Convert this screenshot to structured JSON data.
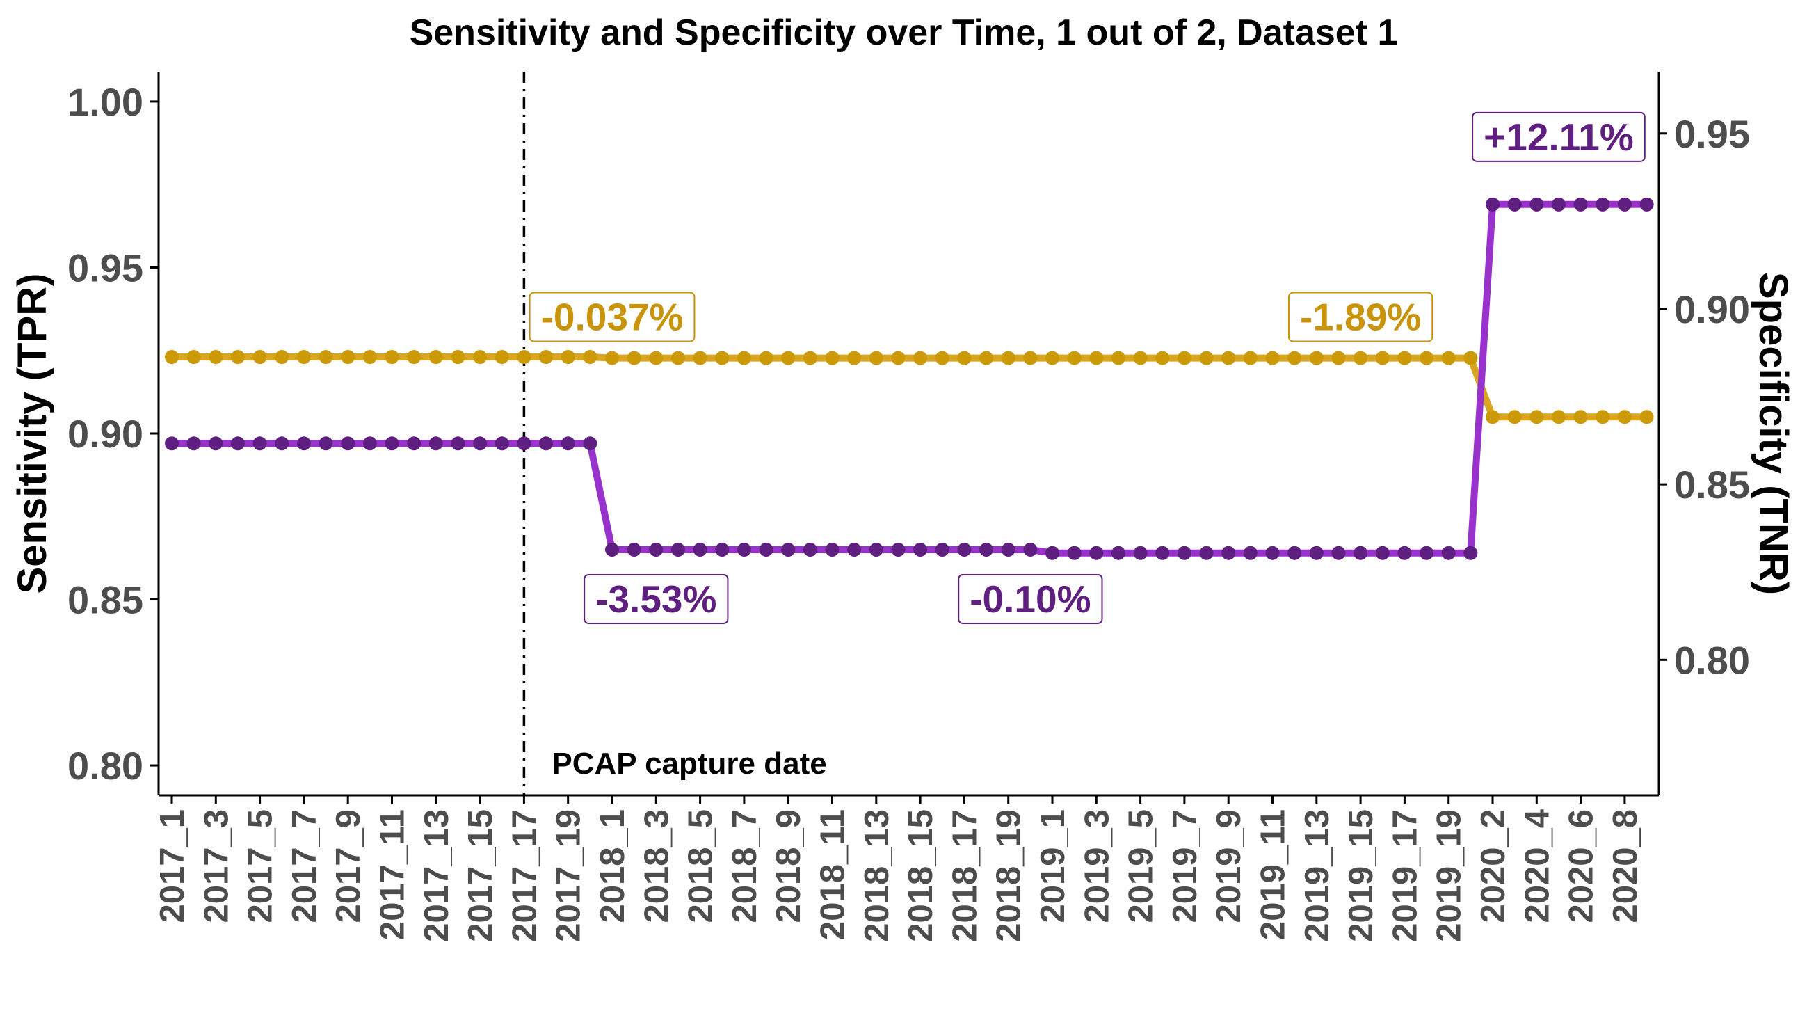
{
  "colors": {
    "sensitivity_line": "#9932CC",
    "sensitivity_point": "#5E1F80",
    "specificity_line": "#DAA520",
    "specificity_point": "#CC9A06",
    "sensitivity_label": "#5E1F80",
    "specificity_label": "#C9940A",
    "axis": "#000000",
    "tick_text": "#4d4d4d"
  },
  "chart_data": {
    "type": "line",
    "title": "Sensitivity and Specificity over Time, 1 out of 2, Dataset 1",
    "ylabel_left": "Sensitivity (TPR)",
    "ylabel_right": "Specificity (TNR)",
    "xlabel": "",
    "y_left_lim": [
      0.791,
      1.009
    ],
    "y_left_ticks": [
      "0.80",
      "0.85",
      "0.90",
      "0.95",
      "1.00"
    ],
    "y_right_lim": [
      0.7614,
      0.9676
    ],
    "y_right_ticks": [
      "0.80",
      "0.85",
      "0.90",
      "0.95"
    ],
    "x_tick_labels": [
      "2017_1",
      "2017_3",
      "2017_5",
      "2017_7",
      "2017_9",
      "2017_11",
      "2017_13",
      "2017_15",
      "2017_17",
      "2017_19",
      "2018_1",
      "2018_3",
      "2018_5",
      "2018_7",
      "2018_9",
      "2018_11",
      "2018_13",
      "2018_15",
      "2018_17",
      "2018_19",
      "2019_1",
      "2019_3",
      "2019_5",
      "2019_7",
      "2019_9",
      "2019_11",
      "2019_13",
      "2019_15",
      "2019_17",
      "2019_19",
      "2020_2",
      "2020_4",
      "2020_6",
      "2020_8"
    ],
    "grid": false,
    "vertical_line": {
      "x_index": 16,
      "label": "PCAP capture date"
    },
    "series": [
      {
        "name": "Sensitivity (TPR)",
        "axis": "left",
        "values": [
          0.897,
          0.897,
          0.897,
          0.897,
          0.897,
          0.897,
          0.897,
          0.897,
          0.897,
          0.897,
          0.897,
          0.897,
          0.897,
          0.897,
          0.897,
          0.897,
          0.897,
          0.897,
          0.897,
          0.897,
          0.865,
          0.865,
          0.865,
          0.865,
          0.865,
          0.865,
          0.865,
          0.865,
          0.865,
          0.865,
          0.865,
          0.865,
          0.865,
          0.865,
          0.865,
          0.865,
          0.865,
          0.865,
          0.865,
          0.865,
          0.864,
          0.864,
          0.864,
          0.864,
          0.864,
          0.864,
          0.864,
          0.864,
          0.864,
          0.864,
          0.864,
          0.864,
          0.864,
          0.864,
          0.864,
          0.864,
          0.864,
          0.864,
          0.864,
          0.864,
          0.969,
          0.969,
          0.969,
          0.969,
          0.969,
          0.969,
          0.969,
          0.969
        ]
      },
      {
        "name": "Specificity (TNR)",
        "axis": "right",
        "values": [
          0.8863,
          0.8863,
          0.8863,
          0.8863,
          0.8863,
          0.8863,
          0.8863,
          0.8863,
          0.8863,
          0.8863,
          0.8863,
          0.8863,
          0.8863,
          0.8863,
          0.8863,
          0.8863,
          0.8863,
          0.8863,
          0.8863,
          0.8863,
          0.886,
          0.886,
          0.886,
          0.886,
          0.886,
          0.886,
          0.886,
          0.886,
          0.886,
          0.886,
          0.886,
          0.886,
          0.886,
          0.886,
          0.886,
          0.886,
          0.886,
          0.886,
          0.886,
          0.886,
          0.886,
          0.886,
          0.886,
          0.886,
          0.886,
          0.886,
          0.886,
          0.886,
          0.886,
          0.886,
          0.886,
          0.886,
          0.886,
          0.886,
          0.886,
          0.886,
          0.886,
          0.886,
          0.886,
          0.886,
          0.8692,
          0.8692,
          0.8692,
          0.8692,
          0.8692,
          0.8692,
          0.8692,
          0.8692
        ]
      }
    ],
    "annotations": [
      {
        "text": "-0.037%",
        "series": "Specificity (TNR)",
        "x_index": 20
      },
      {
        "text": "-1.89%",
        "series": "Specificity (TNR)",
        "x_index": 54
      },
      {
        "text": "-3.53%",
        "series": "Sensitivity (TPR)",
        "x_index": 22
      },
      {
        "text": "-0.10%",
        "series": "Sensitivity (TPR)",
        "x_index": 39
      },
      {
        "text": "+12.11%",
        "series": "Sensitivity (TPR)",
        "x_index": 63
      }
    ]
  }
}
